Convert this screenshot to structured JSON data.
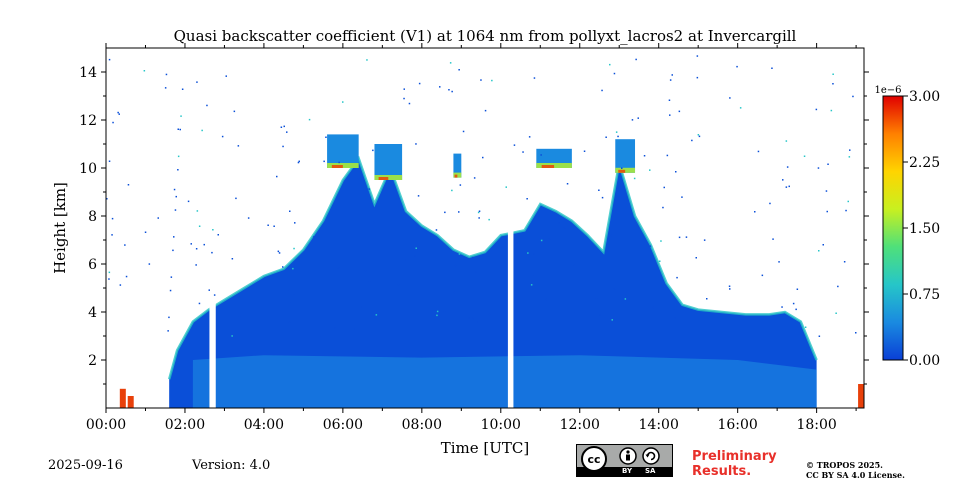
{
  "chart_data": {
    "type": "heatmap",
    "title": "Quasi backscatter coefficient (V1) at 1064 nm from pollyxt_lacros2 at Invercargill",
    "xlabel": "Time [UTC]",
    "ylabel": "Height [km]",
    "x_range_hours": [
      0,
      19.2
    ],
    "ylim": [
      0,
      15
    ],
    "x_ticks": [
      {
        "v": 0,
        "label": "00:00"
      },
      {
        "v": 2,
        "label": "02:00"
      },
      {
        "v": 4,
        "label": "04:00"
      },
      {
        "v": 6,
        "label": "06:00"
      },
      {
        "v": 8,
        "label": "08:00"
      },
      {
        "v": 10,
        "label": "10:00"
      },
      {
        "v": 12,
        "label": "12:00"
      },
      {
        "v": 14,
        "label": "14:00"
      },
      {
        "v": 16,
        "label": "16:00"
      },
      {
        "v": 18,
        "label": "18:00"
      }
    ],
    "y_ticks": [
      {
        "v": 2,
        "label": "2"
      },
      {
        "v": 4,
        "label": "4"
      },
      {
        "v": 6,
        "label": "6"
      },
      {
        "v": 8,
        "label": "8"
      },
      {
        "v": 10,
        "label": "10"
      },
      {
        "v": 12,
        "label": "12"
      },
      {
        "v": 14,
        "label": "14"
      }
    ],
    "colorbar": {
      "min": 0,
      "max": 3.0,
      "exponent": "1e−6",
      "ticks": [
        {
          "v": 0,
          "label": "0.00"
        },
        {
          "v": 0.75,
          "label": "0.75"
        },
        {
          "v": 1.5,
          "label": "1.50"
        },
        {
          "v": 2.25,
          "label": "2.25"
        },
        {
          "v": 3.0,
          "label": "3.00"
        }
      ],
      "colors": [
        "#0a3fd6",
        "#1a8ae0",
        "#26c6c8",
        "#4fe07a",
        "#c8f020",
        "#ffd400",
        "#ff8000",
        "#e00000"
      ]
    },
    "data_gaps_hours": [
      [
        2.62,
        2.78
      ],
      [
        10.18,
        10.32
      ]
    ],
    "cloud_top_profile_km": [
      [
        1.6,
        1.2
      ],
      [
        1.8,
        2.4
      ],
      [
        2.2,
        3.6
      ],
      [
        2.6,
        4.1
      ],
      [
        3.0,
        4.5
      ],
      [
        3.5,
        5.0
      ],
      [
        4.0,
        5.5
      ],
      [
        4.5,
        5.8
      ],
      [
        5.0,
        6.6
      ],
      [
        5.5,
        7.8
      ],
      [
        6.0,
        9.5
      ],
      [
        6.4,
        10.4
      ],
      [
        6.8,
        8.5
      ],
      [
        7.2,
        10.0
      ],
      [
        7.6,
        8.2
      ],
      [
        8.0,
        7.6
      ],
      [
        8.4,
        7.2
      ],
      [
        8.8,
        6.6
      ],
      [
        9.2,
        6.3
      ],
      [
        9.6,
        6.5
      ],
      [
        10.0,
        7.2
      ],
      [
        10.6,
        7.4
      ],
      [
        11.0,
        8.5
      ],
      [
        11.4,
        8.2
      ],
      [
        11.8,
        7.8
      ],
      [
        12.2,
        7.2
      ],
      [
        12.6,
        6.5
      ],
      [
        13.0,
        10.2
      ],
      [
        13.4,
        8.0
      ],
      [
        13.8,
        6.8
      ],
      [
        14.2,
        5.2
      ],
      [
        14.6,
        4.3
      ],
      [
        15.0,
        4.1
      ],
      [
        15.6,
        4.0
      ],
      [
        16.2,
        3.9
      ],
      [
        16.8,
        3.9
      ],
      [
        17.2,
        4.0
      ],
      [
        17.6,
        3.6
      ],
      [
        18.0,
        2.0
      ]
    ],
    "upper_cloud_layers": [
      {
        "x": [
          5.6,
          6.4
        ],
        "y": [
          10.0,
          11.4
        ]
      },
      {
        "x": [
          6.8,
          7.5
        ],
        "y": [
          9.5,
          11.0
        ]
      },
      {
        "x": [
          8.8,
          9.0
        ],
        "y": [
          9.6,
          10.6
        ]
      },
      {
        "x": [
          10.9,
          11.8
        ],
        "y": [
          10.0,
          10.8
        ]
      },
      {
        "x": [
          12.9,
          13.4
        ],
        "y": [
          9.8,
          11.2
        ]
      }
    ]
  },
  "footer": {
    "date": "2025-09-16",
    "version": "Version: 4.0",
    "prelim_line1": "Preliminary",
    "prelim_line2": "Results.",
    "copyright_line1": "© TROPOS 2025.",
    "copyright_line2": "CC BY SA 4.0 License.",
    "badge_by": "BY",
    "badge_sa": "SA"
  }
}
